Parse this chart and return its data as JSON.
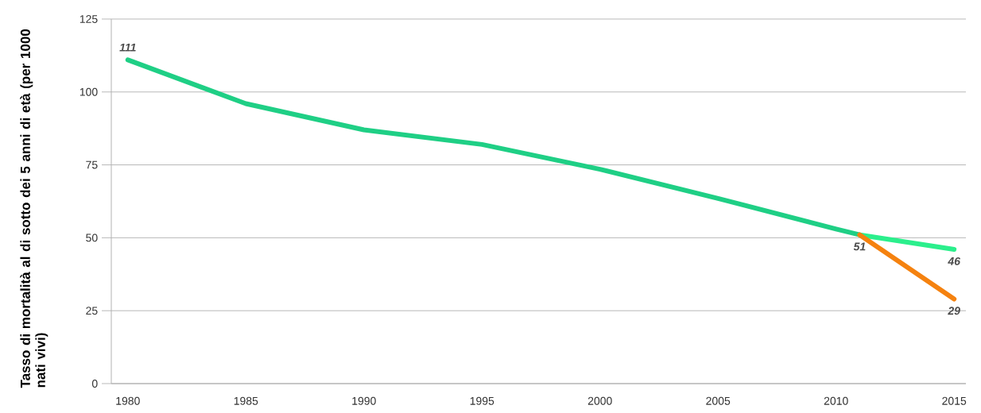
{
  "chart_data": {
    "type": "line",
    "ylabel": "Tasso di mortalità al di sotto dei 5 anni di età (per 1000 nati vivi)",
    "xlim": [
      1979.3,
      2015.5
    ],
    "xticks": [
      1980,
      1985,
      1990,
      1995,
      2000,
      2005,
      2010,
      2015
    ],
    "ylim": [
      0,
      125
    ],
    "yticks": [
      0,
      25,
      50,
      75,
      100,
      125
    ],
    "grid": "y",
    "marker": "none",
    "line_style": "solid",
    "series": [
      {
        "color": "#1fcf85",
        "x": [
          1980,
          1985,
          1990,
          1995,
          2000,
          2005,
          2010,
          2011
        ],
        "values": [
          111,
          96,
          87,
          82,
          73.5,
          63.5,
          53,
          51
        ],
        "value_labels": [
          "111",
          null,
          null,
          null,
          null,
          null,
          null,
          "51"
        ]
      },
      {
        "color": "#2bef8c",
        "x": [
          2011,
          2015
        ],
        "values": [
          51,
          46
        ],
        "value_labels": [
          null,
          "46"
        ]
      },
      {
        "color": "#f5820f",
        "x": [
          2011,
          2015
        ],
        "values": [
          51,
          29
        ],
        "value_labels": [
          null,
          "29"
        ]
      }
    ]
  }
}
